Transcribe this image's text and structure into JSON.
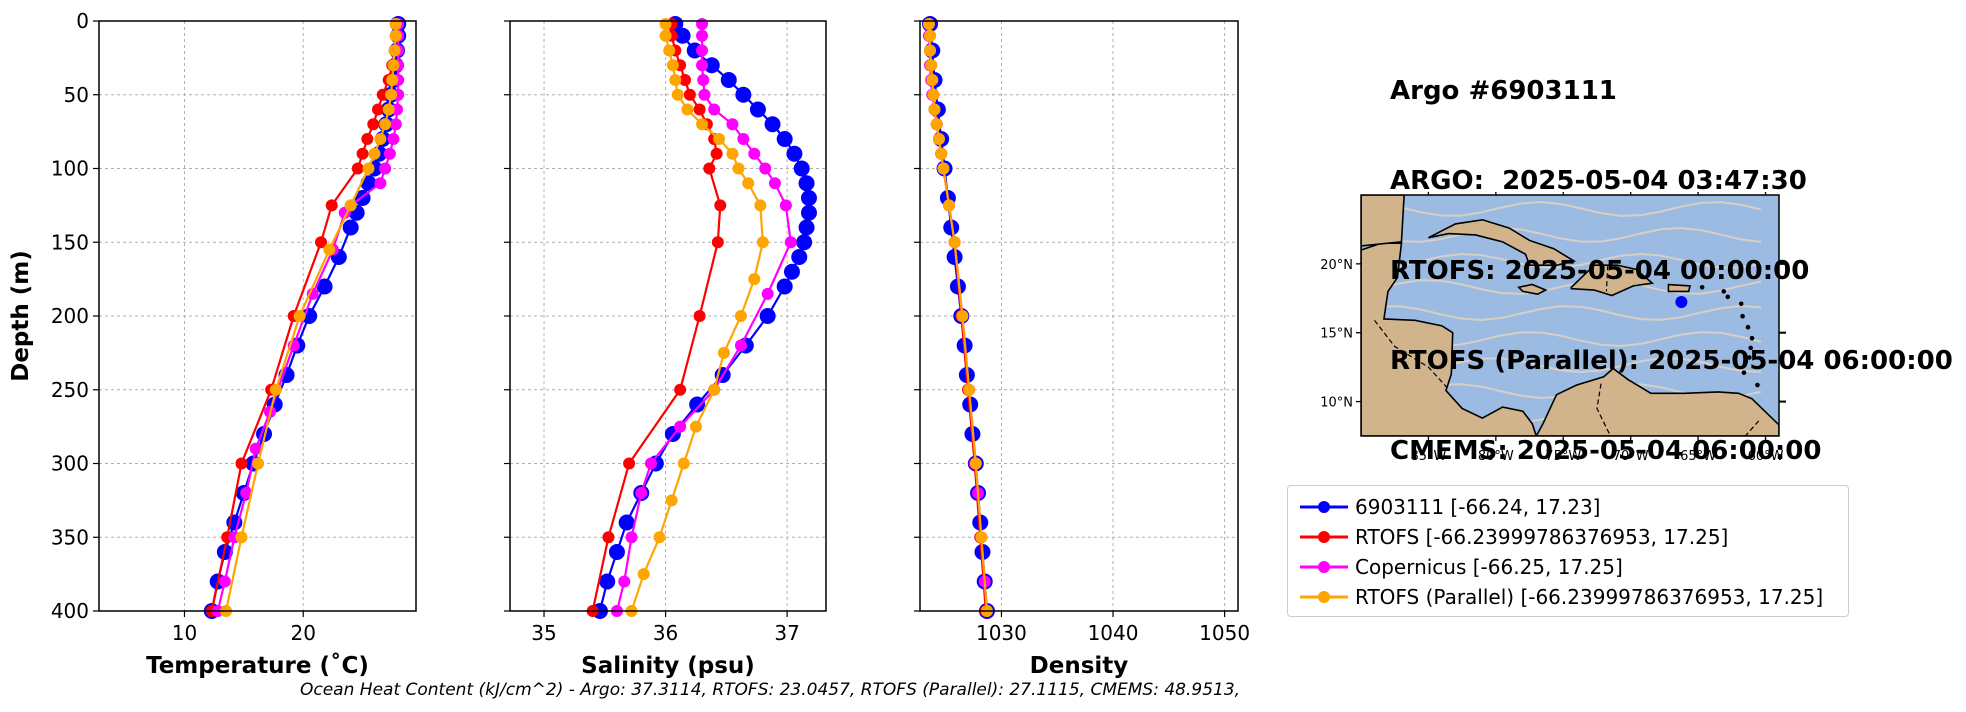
{
  "title_lines": [
    "Argo #6903111",
    "ARGO:  2025-05-04 03:47:30",
    "RTOFS: 2025-05-04 00:00:00",
    "RTOFS (Parallel): 2025-05-04 06:00:00",
    "CMEMS: 2025-05-04 06:00:00"
  ],
  "footer": "Ocean Heat Content (kJ/cm^2) - Argo: 37.3114,  RTOFS: 23.0457,  RTOFS (Parallel): 27.1115,  CMEMS: 48.9513,",
  "colors": {
    "argo": "#0000ff",
    "rtofs": "#ff0000",
    "copernicus": "#ff00ff",
    "rtofs_parallel": "#ffa500",
    "ocean": "#9bbbe3",
    "land": "#d2b48c",
    "stream": "#d8cfc4"
  },
  "legend": [
    {
      "label": "6903111 [-66.24, 17.23]",
      "color": "#0000ff"
    },
    {
      "label": "RTOFS [-66.23999786376953, 17.25]",
      "color": "#ff0000"
    },
    {
      "label": "Copernicus [-66.25, 17.25]",
      "color": "#ff00ff"
    },
    {
      "label": "RTOFS (Parallel) [-66.23999786376953, 17.25]",
      "color": "#ffa500"
    }
  ],
  "map": {
    "lon_ticks": [
      "85°W",
      "80°W",
      "75°W",
      "70°W",
      "65°W",
      "60°W"
    ],
    "lat_ticks": [
      "20°N",
      "15°N",
      "10°N"
    ],
    "lon_range": [
      -90,
      -59
    ],
    "lat_range": [
      7.5,
      25
    ],
    "marker": {
      "lon": -66.24,
      "lat": 17.23
    }
  },
  "chart_data": [
    {
      "type": "line",
      "xlabel": "Temperature (˚C)",
      "ylabel": "Depth (m)",
      "xlim": [
        2.8,
        29.5
      ],
      "ylim": [
        400,
        0
      ],
      "xticks": [
        10,
        20
      ],
      "yticks": [
        0,
        50,
        100,
        150,
        200,
        250,
        300,
        350,
        400
      ],
      "grid": true,
      "series": [
        {
          "name": "6903111",
          "depth": [
            2,
            10,
            20,
            30,
            40,
            50,
            60,
            70,
            80,
            90,
            100,
            110,
            120,
            130,
            140,
            160,
            180,
            200,
            220,
            240,
            260,
            280,
            300,
            320,
            340,
            360,
            380,
            400
          ],
          "values": [
            28.0,
            28.0,
            27.9,
            27.8,
            27.6,
            27.4,
            27.2,
            27.0,
            26.7,
            26.4,
            26.0,
            25.5,
            25.0,
            24.5,
            24.0,
            23.0,
            21.8,
            20.5,
            19.5,
            18.6,
            17.6,
            16.7,
            15.8,
            15.0,
            14.2,
            13.4,
            12.8,
            12.3
          ]
        },
        {
          "name": "RTOFS",
          "depth": [
            2,
            10,
            20,
            30,
            40,
            50,
            60,
            70,
            80,
            90,
            100,
            125,
            150,
            200,
            250,
            300,
            350,
            400
          ],
          "values": [
            27.8,
            27.8,
            27.7,
            27.5,
            27.2,
            26.7,
            26.3,
            25.9,
            25.4,
            25.0,
            24.6,
            22.4,
            21.5,
            19.2,
            17.3,
            14.8,
            13.6,
            12.3
          ]
        },
        {
          "name": "Copernicus",
          "depth": [
            2,
            10,
            20,
            30,
            40,
            50,
            60,
            70,
            80,
            90,
            100,
            110,
            125,
            130,
            155,
            185,
            220,
            265,
            290,
            320,
            350,
            380,
            400
          ],
          "values": [
            28.0,
            28.0,
            28.0,
            28.0,
            28.0,
            28.0,
            27.9,
            27.8,
            27.6,
            27.3,
            26.9,
            26.5,
            24.0,
            23.5,
            22.5,
            20.8,
            19.2,
            17.2,
            16.0,
            15.2,
            14.2,
            13.4,
            12.8
          ]
        },
        {
          "name": "RTOFS (Parallel)",
          "depth": [
            2,
            10,
            20,
            30,
            40,
            50,
            60,
            70,
            80,
            90,
            100,
            125,
            155,
            200,
            250,
            300,
            350,
            400
          ],
          "values": [
            27.8,
            27.8,
            27.7,
            27.6,
            27.5,
            27.4,
            27.2,
            26.9,
            26.5,
            26.0,
            25.5,
            24.0,
            22.2,
            19.7,
            17.7,
            16.2,
            14.8,
            13.5
          ]
        }
      ]
    },
    {
      "type": "line",
      "xlabel": "Salinity (psu)",
      "xlim": [
        34.72,
        37.32
      ],
      "ylim": [
        400,
        0
      ],
      "xticks": [
        35,
        36,
        37
      ],
      "yticks": [
        0,
        50,
        100,
        150,
        200,
        250,
        300,
        350,
        400
      ],
      "grid": true,
      "series": [
        {
          "name": "6903111",
          "depth": [
            2,
            10,
            20,
            30,
            40,
            50,
            60,
            70,
            80,
            90,
            100,
            110,
            120,
            130,
            140,
            150,
            160,
            170,
            180,
            200,
            220,
            240,
            260,
            280,
            300,
            320,
            340,
            360,
            380,
            400
          ],
          "values": [
            36.08,
            36.14,
            36.24,
            36.38,
            36.52,
            36.64,
            36.76,
            36.88,
            36.98,
            37.06,
            37.12,
            37.16,
            37.18,
            37.18,
            37.16,
            37.14,
            37.1,
            37.04,
            36.98,
            36.84,
            36.66,
            36.47,
            36.26,
            36.06,
            35.92,
            35.8,
            35.68,
            35.6,
            35.52,
            35.46
          ]
        },
        {
          "name": "RTOFS",
          "depth": [
            2,
            10,
            20,
            30,
            40,
            50,
            60,
            70,
            80,
            90,
            100,
            125,
            150,
            200,
            250,
            300,
            350,
            400
          ],
          "values": [
            36.05,
            36.05,
            36.08,
            36.12,
            36.16,
            36.2,
            36.28,
            36.34,
            36.4,
            36.42,
            36.36,
            36.45,
            36.43,
            36.28,
            36.12,
            35.7,
            35.53,
            35.4
          ]
        },
        {
          "name": "Copernicus",
          "depth": [
            2,
            10,
            20,
            30,
            40,
            50,
            60,
            70,
            80,
            90,
            100,
            110,
            125,
            150,
            185,
            220,
            250,
            275,
            300,
            320,
            350,
            380,
            400
          ],
          "values": [
            36.3,
            36.3,
            36.3,
            36.3,
            36.31,
            36.32,
            36.4,
            36.55,
            36.64,
            36.73,
            36.82,
            36.9,
            36.99,
            37.03,
            36.84,
            36.62,
            36.4,
            36.12,
            35.88,
            35.8,
            35.72,
            35.66,
            35.6
          ]
        },
        {
          "name": "RTOFS (Parallel)",
          "depth": [
            2,
            10,
            20,
            30,
            40,
            50,
            60,
            70,
            80,
            90,
            100,
            110,
            125,
            150,
            175,
            200,
            225,
            250,
            275,
            300,
            325,
            350,
            375,
            400
          ],
          "values": [
            36.0,
            36.0,
            36.03,
            36.06,
            36.08,
            36.1,
            36.18,
            36.3,
            36.44,
            36.55,
            36.6,
            36.68,
            36.78,
            36.8,
            36.73,
            36.62,
            36.48,
            36.4,
            36.25,
            36.15,
            36.05,
            35.95,
            35.82,
            35.72
          ]
        }
      ]
    },
    {
      "type": "line",
      "xlabel": "Density",
      "xlim": [
        1022.7,
        1051.2
      ],
      "ylim": [
        400,
        0
      ],
      "xticks": [
        1030,
        1040,
        1050
      ],
      "yticks": [
        0,
        50,
        100,
        150,
        200,
        250,
        300,
        350,
        400
      ],
      "grid": true,
      "series": [
        {
          "name": "6903111",
          "depth": [
            2,
            20,
            40,
            60,
            80,
            100,
            120,
            140,
            160,
            180,
            200,
            220,
            240,
            260,
            280,
            300,
            320,
            340,
            360,
            380,
            400
          ],
          "values": [
            1023.6,
            1023.8,
            1024.0,
            1024.3,
            1024.6,
            1024.9,
            1025.2,
            1025.5,
            1025.8,
            1026.1,
            1026.4,
            1026.7,
            1026.9,
            1027.2,
            1027.4,
            1027.7,
            1027.9,
            1028.1,
            1028.3,
            1028.5,
            1028.7
          ]
        },
        {
          "name": "RTOFS",
          "depth": [
            2,
            10,
            20,
            30,
            40,
            50,
            60,
            70,
            80,
            90,
            100,
            125,
            150,
            200,
            250,
            300,
            350,
            400
          ],
          "values": [
            1023.5,
            1023.6,
            1023.6,
            1023.7,
            1023.8,
            1023.9,
            1024.0,
            1024.2,
            1024.4,
            1024.6,
            1024.8,
            1025.3,
            1025.8,
            1026.4,
            1027.0,
            1027.6,
            1028.1,
            1028.6
          ]
        },
        {
          "name": "Copernicus",
          "depth": [
            2,
            10,
            20,
            30,
            40,
            50,
            60,
            70,
            80,
            90,
            100,
            125,
            150,
            200,
            250,
            300,
            320,
            350,
            380,
            400
          ],
          "values": [
            1023.5,
            1023.5,
            1023.6,
            1023.6,
            1023.7,
            1023.8,
            1024.0,
            1024.2,
            1024.4,
            1024.6,
            1024.8,
            1025.3,
            1025.8,
            1026.5,
            1027.1,
            1027.7,
            1027.9,
            1028.2,
            1028.5,
            1028.7
          ]
        },
        {
          "name": "RTOFS (Parallel)",
          "depth": [
            2,
            10,
            20,
            30,
            40,
            50,
            60,
            70,
            80,
            90,
            100,
            125,
            150,
            200,
            250,
            300,
            350,
            400
          ],
          "values": [
            1023.5,
            1023.6,
            1023.6,
            1023.7,
            1023.8,
            1023.9,
            1024.0,
            1024.2,
            1024.4,
            1024.6,
            1024.8,
            1025.3,
            1025.8,
            1026.5,
            1027.1,
            1027.7,
            1028.2,
            1028.7
          ]
        }
      ]
    }
  ]
}
